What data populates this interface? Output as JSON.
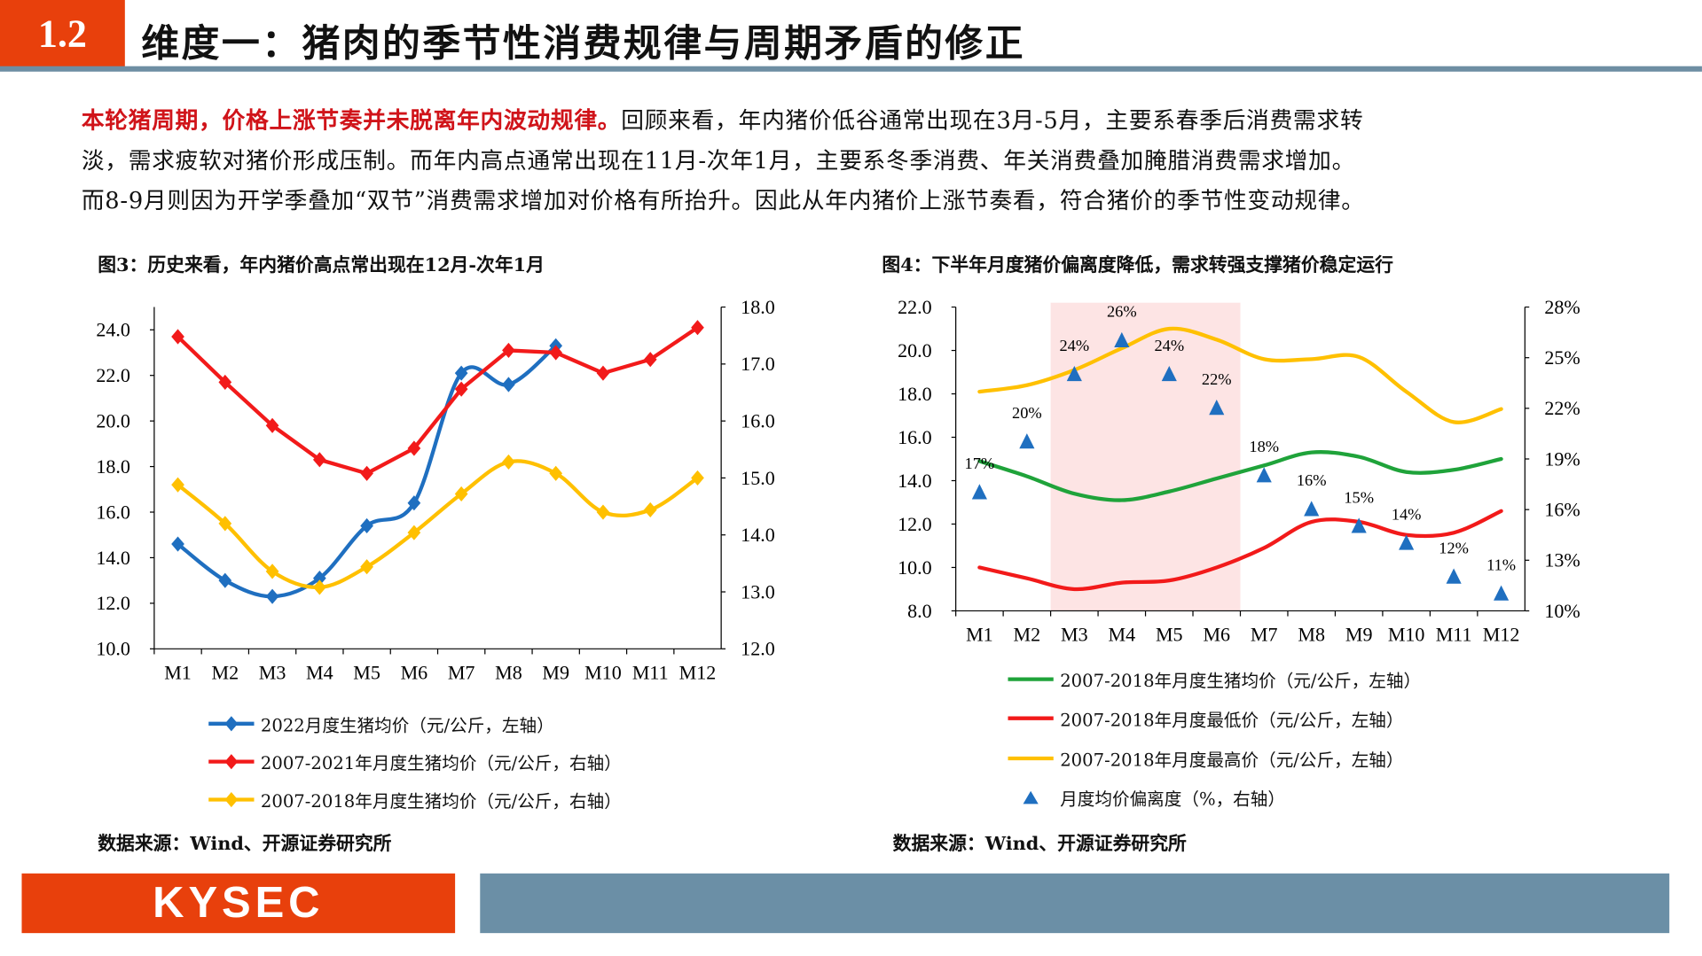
{
  "header": {
    "section_number": "1.2",
    "title": "维度一：猪肉的季节性消费规律与周期矛盾的修正",
    "accent_color": "#e8400c",
    "rule_color": "#6e8ea3"
  },
  "body": {
    "highlight": "本轮猪周期，价格上涨节奏并未脱离年内波动规律。",
    "line1_rest": "回顾来看，年内猪价低谷通常出现在3月-5月，主要系春季后消费需求转",
    "line2": "淡，需求疲软对猪价形成压制。而年内高点通常出现在11月-次年1月，主要系冬季消费、年关消费叠加腌腊消费需求增加。",
    "line3": "而8-9月则因为开学季叠加“双节”消费需求增加对价格有所抬升。因此从年内猪价上涨节奏看，符合猪价的季节性变动规律。"
  },
  "figures": {
    "fig3_title": "图3：历史来看，年内猪价高点常出现在12月-次年1月",
    "fig4_title": "图4：下半年月度猪价偏离度降低，需求转强支撑猪价稳定运行",
    "fig3_source": "数据来源：Wind、开源证券研究所",
    "fig4_source": "数据来源：Wind、开源证券研究所"
  },
  "footer": {
    "logo": "KYSEC",
    "bar_color": "#6b8fa6"
  },
  "chart_data": [
    {
      "type": "line",
      "categories": [
        "M1",
        "M2",
        "M3",
        "M4",
        "M5",
        "M6",
        "M7",
        "M8",
        "M9",
        "M10",
        "M11",
        "M12"
      ],
      "left_axis": {
        "ylim": [
          10,
          25
        ],
        "ticks": [
          "10.0",
          "12.0",
          "14.0",
          "16.0",
          "18.0",
          "20.0",
          "22.0",
          "24.0"
        ]
      },
      "right_axis": {
        "ylim": [
          12,
          18
        ],
        "ticks": [
          "12.0",
          "13.0",
          "14.0",
          "15.0",
          "16.0",
          "17.0",
          "18.0"
        ]
      },
      "legend_position": "bottom",
      "series": [
        {
          "name": "2022月度生猪均价（元/公斤，左轴）",
          "axis": "left",
          "color": "#1f6fc0",
          "marker": "diamond",
          "smooth": true,
          "values": [
            14.6,
            13.0,
            12.3,
            13.1,
            15.4,
            16.4,
            22.1,
            21.6,
            23.3,
            null,
            null,
            null
          ]
        },
        {
          "name": "2007-2021年月度生猪均价（元/公斤，右轴）",
          "axis": "right",
          "color": "#f21a1a",
          "marker": "diamond",
          "smooth": false,
          "values": [
            17.48,
            16.68,
            15.92,
            15.32,
            15.08,
            15.52,
            16.56,
            17.24,
            17.2,
            16.84,
            17.08,
            17.64
          ]
        },
        {
          "name": "2007-2018年月度生猪均价（元/公斤，右轴）",
          "axis": "right",
          "color": "#ffc000",
          "marker": "diamond",
          "smooth": true,
          "values": [
            14.88,
            14.2,
            13.36,
            13.08,
            13.44,
            14.04,
            14.72,
            15.28,
            15.08,
            14.4,
            14.44,
            15.0
          ]
        }
      ]
    },
    {
      "type": "line",
      "categories": [
        "M1",
        "M2",
        "M3",
        "M4",
        "M5",
        "M6",
        "M7",
        "M8",
        "M9",
        "M10",
        "M11",
        "M12"
      ],
      "left_axis": {
        "ylim": [
          8,
          22
        ],
        "ticks": [
          "8.0",
          "10.0",
          "12.0",
          "14.0",
          "16.0",
          "18.0",
          "20.0",
          "22.0"
        ]
      },
      "right_axis": {
        "ylim": [
          10,
          28
        ],
        "ticks": [
          "10%",
          "13%",
          "16%",
          "19%",
          "22%",
          "25%",
          "28%"
        ]
      },
      "shaded_range": [
        "M3",
        "M6"
      ],
      "shade_color": "#fde4e4",
      "legend_position": "bottom",
      "series": [
        {
          "name": "2007-2018年月度生猪均价（元/公斤，左轴）",
          "axis": "left",
          "color": "#1fa33a",
          "smooth": true,
          "values": [
            14.9,
            14.2,
            13.4,
            13.1,
            13.5,
            14.1,
            14.7,
            15.3,
            15.1,
            14.4,
            14.5,
            15.0
          ]
        },
        {
          "name": "2007-2018年月度最低价（元/公斤，左轴）",
          "axis": "left",
          "color": "#f21a1a",
          "smooth": true,
          "values": [
            10.0,
            9.5,
            9.0,
            9.3,
            9.4,
            10.0,
            10.9,
            12.1,
            12.1,
            11.5,
            11.6,
            12.6
          ]
        },
        {
          "name": "2007-2018年月度最高价（元/公斤，左轴）",
          "axis": "left",
          "color": "#ffc000",
          "smooth": true,
          "values": [
            18.1,
            18.4,
            19.1,
            20.1,
            21.0,
            20.5,
            19.6,
            19.6,
            19.7,
            18.1,
            16.7,
            17.3
          ]
        },
        {
          "name": "月度均价偏离度（%，右轴）",
          "axis": "right",
          "color": "#1f6fc0",
          "marker": "triangle",
          "values": [
            17,
            20,
            24,
            26,
            24,
            22,
            18,
            16,
            15,
            14,
            12,
            11
          ],
          "labels": [
            "17%",
            "20%",
            "24%",
            "26%",
            "24%",
            "22%",
            "18%",
            "16%",
            "15%",
            "14%",
            "12%",
            "11%"
          ]
        }
      ]
    }
  ]
}
